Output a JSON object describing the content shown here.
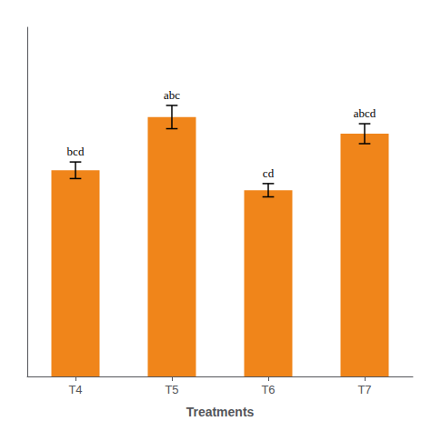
{
  "chart_data": {
    "type": "bar",
    "xlabel": "Treatments",
    "categories": [
      "T4",
      "T5",
      "T6",
      "T7"
    ],
    "values": [
      6.2,
      7.8,
      5.6,
      7.3
    ],
    "errors": [
      0.25,
      0.35,
      0.2,
      0.3
    ],
    "annotations": [
      "bcd",
      "abc",
      "cd",
      "abcd"
    ],
    "color": "#F0851A",
    "ylim": [
      0,
      10.5
    ],
    "grid": false,
    "tick_labels": "x"
  }
}
